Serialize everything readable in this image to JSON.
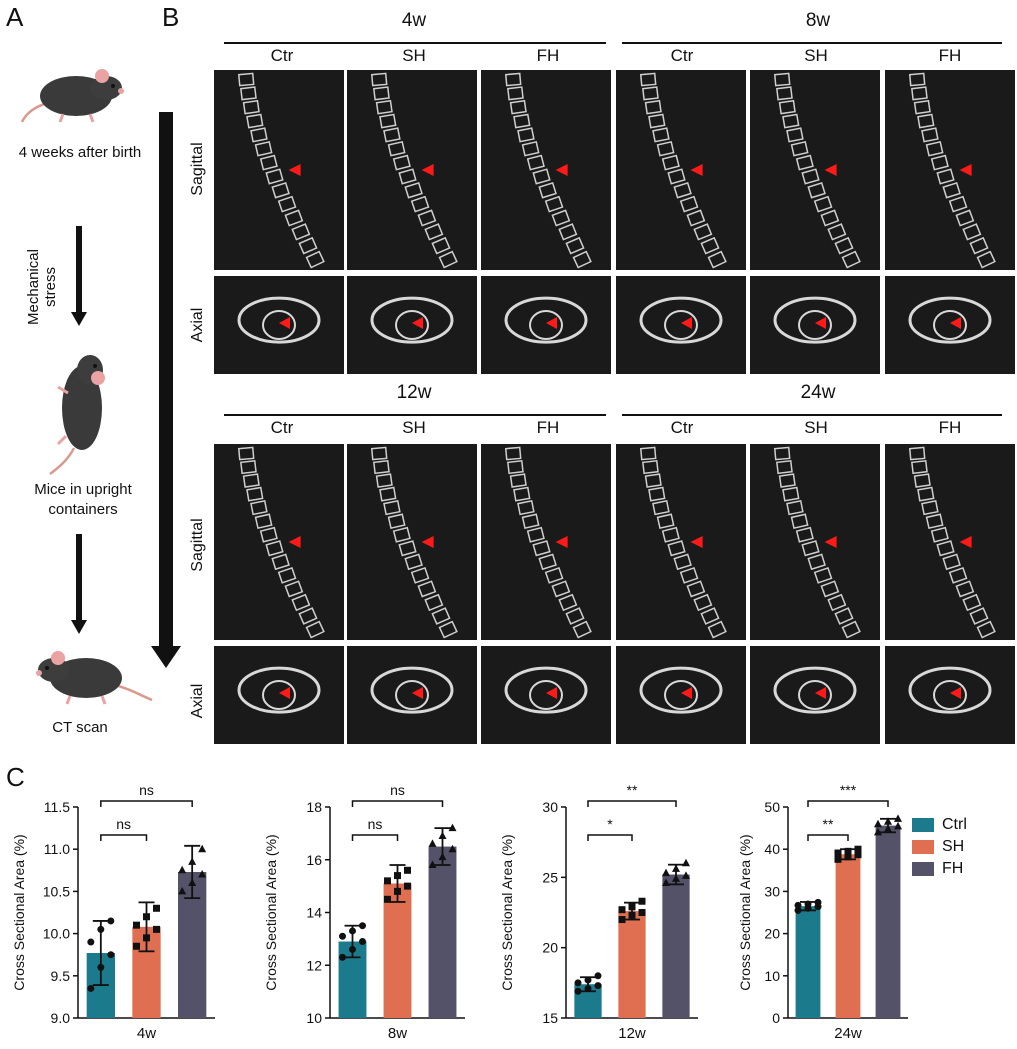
{
  "panel_letters": {
    "a": "A",
    "b": "B",
    "c": "C"
  },
  "schematic": {
    "step1": "4 weeks after birth",
    "stress_label": "Mechanical stress",
    "step2": "Mice in upright containers",
    "step3": "CT scan"
  },
  "ct_grid": {
    "row_sagittal": "Sagittal",
    "row_axial": "Axial",
    "groups": [
      "Ctr",
      "SH",
      "FH"
    ],
    "timepoints_top": [
      "4w",
      "8w"
    ],
    "timepoints_bottom": [
      "12w",
      "24w"
    ]
  },
  "legend": {
    "items": [
      {
        "name": "Ctrl",
        "color": "#1b7b8c"
      },
      {
        "name": "SH",
        "color": "#e06f52"
      },
      {
        "name": "FH",
        "color": "#545268"
      }
    ]
  },
  "chart_data": [
    {
      "type": "bar",
      "title": "",
      "xlabel": "4w",
      "ylabel": "Cross Sectional Area (%)",
      "categories": [
        "Ctrl",
        "SH",
        "FH"
      ],
      "values": [
        9.77,
        10.08,
        10.73
      ],
      "errors": [
        0.38,
        0.29,
        0.31
      ],
      "ylim": [
        9.0,
        11.5
      ],
      "yticks": [
        "9.0",
        "9.5",
        "10.0",
        "10.5",
        "11.0",
        "11.5"
      ],
      "points": [
        [
          9.35,
          9.6,
          9.75,
          9.9,
          10.05,
          10.15
        ],
        [
          9.85,
          9.95,
          10.05,
          10.1,
          10.2,
          10.3
        ],
        [
          10.5,
          10.6,
          10.7,
          10.75,
          10.85,
          11.0
        ]
      ],
      "significance": [
        {
          "from": 0,
          "to": 1,
          "label": "ns"
        },
        {
          "from": 0,
          "to": 2,
          "label": "ns"
        }
      ]
    },
    {
      "type": "bar",
      "title": "",
      "xlabel": "8w",
      "ylabel": "Cross Sectional Area (%)",
      "categories": [
        "Ctrl",
        "SH",
        "FH"
      ],
      "values": [
        12.9,
        15.1,
        16.5
      ],
      "errors": [
        0.6,
        0.7,
        0.7
      ],
      "ylim": [
        10,
        18
      ],
      "yticks": [
        "10",
        "12",
        "14",
        "16",
        "18"
      ],
      "points": [
        [
          12.3,
          12.6,
          12.9,
          13.1,
          13.3,
          13.5
        ],
        [
          14.5,
          14.8,
          15.0,
          15.2,
          15.4,
          15.6
        ],
        [
          15.8,
          16.1,
          16.4,
          16.6,
          16.9,
          17.2
        ]
      ],
      "significance": [
        {
          "from": 0,
          "to": 1,
          "label": "ns"
        },
        {
          "from": 0,
          "to": 2,
          "label": "ns"
        }
      ]
    },
    {
      "type": "bar",
      "title": "",
      "xlabel": "12w",
      "ylabel": "Cross Sectional Area (%)",
      "categories": [
        "Ctrl",
        "SH",
        "FH"
      ],
      "values": [
        17.4,
        22.6,
        25.2
      ],
      "errors": [
        0.5,
        0.6,
        0.7
      ],
      "ylim": [
        15,
        30
      ],
      "yticks": [
        "15",
        "20",
        "25",
        "30"
      ],
      "points": [
        [
          16.9,
          17.1,
          17.3,
          17.5,
          17.7,
          18.0
        ],
        [
          22.0,
          22.3,
          22.5,
          22.7,
          22.9,
          23.3
        ],
        [
          24.6,
          24.9,
          25.1,
          25.3,
          25.6,
          26.0
        ]
      ],
      "significance": [
        {
          "from": 0,
          "to": 1,
          "label": "*"
        },
        {
          "from": 0,
          "to": 2,
          "label": "**"
        }
      ]
    },
    {
      "type": "bar",
      "title": "",
      "xlabel": "24w",
      "ylabel": "Cross Sectional Area (%)",
      "categories": [
        "Ctrl",
        "SH",
        "FH"
      ],
      "values": [
        26.5,
        38.8,
        45.6
      ],
      "errors": [
        1.0,
        1.2,
        1.6
      ],
      "ylim": [
        0,
        50
      ],
      "yticks": [
        "0",
        "10",
        "20",
        "30",
        "40",
        "50"
      ],
      "points": [
        [
          25.5,
          26.0,
          26.4,
          26.7,
          27.0,
          27.4
        ],
        [
          37.6,
          38.2,
          38.7,
          39.1,
          39.5,
          40.0
        ],
        [
          44.0,
          44.8,
          45.4,
          45.9,
          46.5,
          47.2
        ]
      ],
      "significance": [
        {
          "from": 0,
          "to": 1,
          "label": "**"
        },
        {
          "from": 0,
          "to": 2,
          "label": "***"
        }
      ]
    }
  ]
}
